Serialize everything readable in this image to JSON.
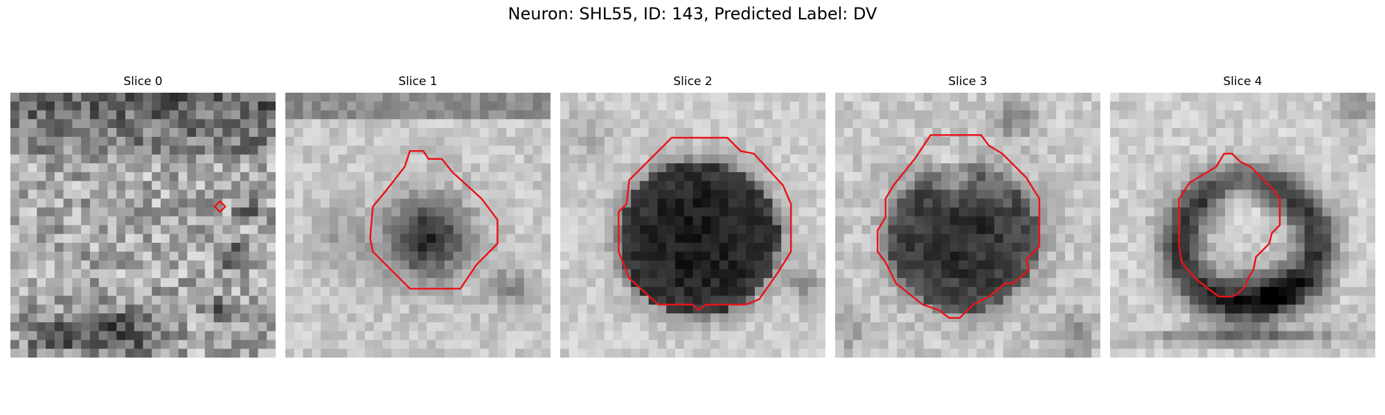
{
  "figure": {
    "title": "Neuron: SHL55, ID: 143, Predicted Label: DV"
  },
  "panels": [
    {
      "title": "Slice 0"
    },
    {
      "title": "Slice 1"
    },
    {
      "title": "Slice 2"
    },
    {
      "title": "Slice 3"
    },
    {
      "title": "Slice 4"
    }
  ],
  "colors": {
    "contour": "#e8141b",
    "background": "#ffffff"
  }
}
